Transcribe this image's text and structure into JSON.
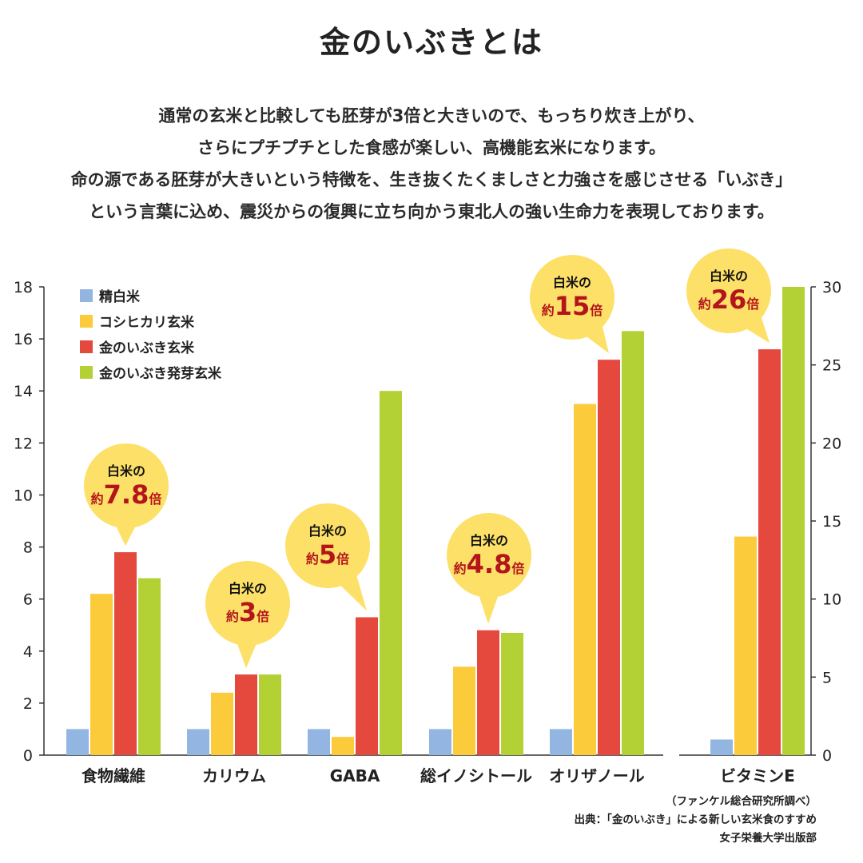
{
  "page": {
    "title": "金のいぶきとは",
    "intro": [
      "通常の玄米と比較しても胚芽が3倍と大きいので、もっちり炊き上がり、",
      "さらにプチプチとした食感が楽しい、高機能玄米になります。",
      "命の源である胚芽が大きいという特徴を、生き抜くたくましさと力強さを感じさせる「いぶき」",
      "という言葉に込め、震災からの復興に立ち向かう東北人の強い生命力を表現しております。"
    ],
    "credits": [
      "（ファンケル総合研究所調べ）",
      "出典：「金のいぶき」による新しい玄米食のすすめ",
      "女子栄養大学出版部"
    ]
  },
  "chart_data": {
    "type": "bar",
    "legend_position": "top-left",
    "grid": false,
    "colors": {
      "精白米": "#93b5e1",
      "コシヒカリ玄米": "#fbcb3b",
      "金のいぶき玄米": "#e5493e",
      "金のいぶき発芽玄米": "#b3d135"
    },
    "callout_color": "#fde068",
    "callout_text_color": "#b3151b",
    "series": [
      {
        "name": "精白米"
      },
      {
        "name": "コシヒカリ玄米"
      },
      {
        "name": "金のいぶき玄米"
      },
      {
        "name": "金のいぶき発芽玄米"
      }
    ],
    "panels": [
      {
        "axis": "left",
        "ylim": [
          0,
          18
        ],
        "yticks": [
          0,
          2,
          4,
          6,
          8,
          10,
          12,
          14,
          16,
          18
        ],
        "categories": [
          "食物繊維",
          "カリウム",
          "GABA",
          "総イノシトール",
          "オリザノール"
        ],
        "values": [
          [
            1,
            6.2,
            7.8,
            6.8
          ],
          [
            1,
            2.4,
            3.1,
            3.1
          ],
          [
            1,
            0.7,
            5.3,
            14
          ],
          [
            1,
            3.4,
            4.8,
            4.7
          ],
          [
            1,
            13.5,
            15.2,
            16.3
          ]
        ]
      },
      {
        "axis": "right",
        "ylim": [
          0,
          30
        ],
        "yticks": [
          0,
          5,
          10,
          15,
          20,
          25,
          30
        ],
        "categories": [
          "ビタミンE"
        ],
        "values": [
          [
            1,
            14,
            26,
            30
          ]
        ]
      }
    ],
    "callouts": [
      {
        "category": "食物繊維",
        "line1": "白米の",
        "prefix": "約",
        "number": "7.8",
        "suffix": "倍"
      },
      {
        "category": "カリウム",
        "line1": "白米の",
        "prefix": "約",
        "number": "3",
        "suffix": "倍"
      },
      {
        "category": "GABA",
        "line1": "白米の",
        "prefix": "約",
        "number": "5",
        "suffix": "倍"
      },
      {
        "category": "総イノシトール",
        "line1": "白米の",
        "prefix": "約",
        "number": "4.8",
        "suffix": "倍"
      },
      {
        "category": "オリザノール",
        "line1": "白米の",
        "prefix": "約",
        "number": "15",
        "suffix": "倍"
      },
      {
        "category": "ビタミンE",
        "line1": "白米の",
        "prefix": "約",
        "number": "26",
        "suffix": "倍"
      }
    ]
  }
}
